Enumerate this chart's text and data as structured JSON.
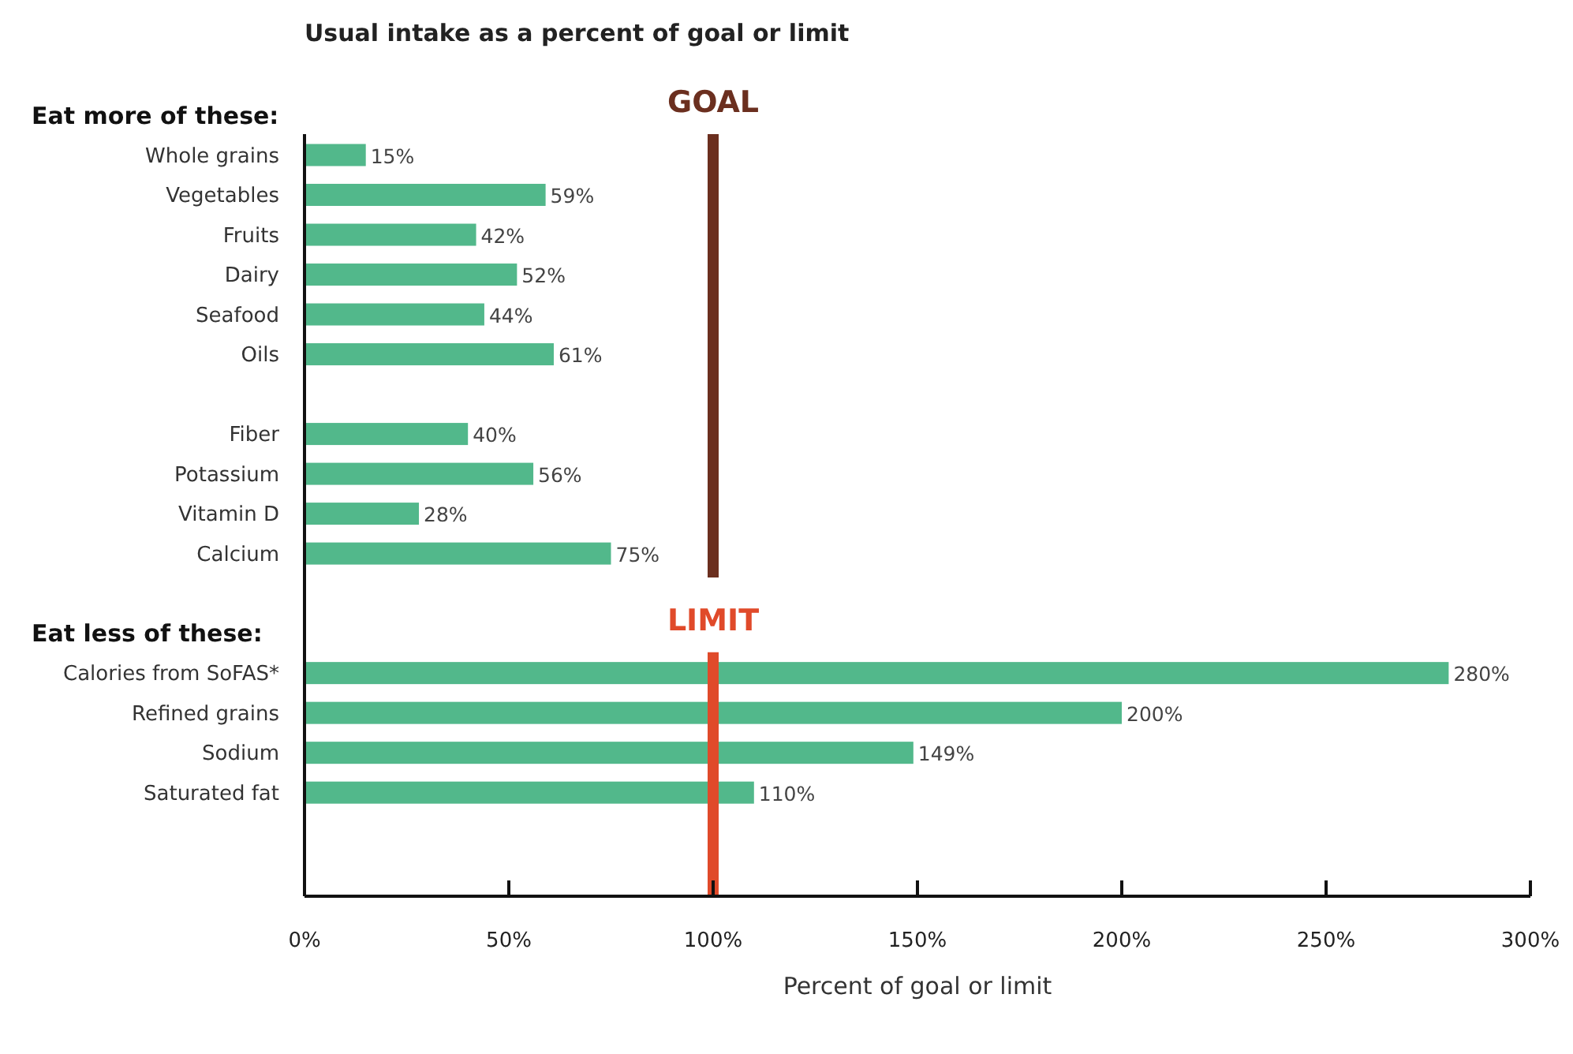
{
  "chart_data": {
    "type": "bar",
    "orientation": "horizontal",
    "title": "Usual intake as a percent of goal or limit",
    "xlabel": "Percent of goal or limit",
    "categories": [
      null,
      "Whole grains",
      "Vegetables",
      "Fruits",
      "Dairy",
      "Seafood",
      "Oils",
      null,
      "Fiber",
      "Potassium",
      "Vitamin D",
      "Calcium",
      null,
      null,
      "Calories from SoFAS*",
      "Refined grains",
      "Sodium",
      "Saturated fat",
      null
    ],
    "values": [
      null,
      15,
      59,
      42,
      52,
      44,
      61,
      null,
      40,
      56,
      28,
      75,
      null,
      null,
      280,
      200,
      149,
      110,
      null
    ],
    "value_labels": [
      null,
      "15%",
      "59%",
      "42%",
      "52%",
      "44%",
      "61%",
      null,
      "40%",
      "56%",
      "28%",
      "75%",
      null,
      null,
      "280%",
      "200%",
      "149%",
      "110%",
      null
    ],
    "color": "#52b88b",
    "xlim": [
      0,
      300
    ],
    "xticks": [
      {
        "value": 0,
        "label": "0%"
      },
      {
        "value": 50,
        "label": "50%"
      },
      {
        "value": 100,
        "label": "100%"
      },
      {
        "value": 150,
        "label": "150%"
      },
      {
        "value": 200,
        "label": "200%"
      },
      {
        "value": 250,
        "label": "250%"
      },
      {
        "value": 300,
        "label": "300%"
      }
    ],
    "annotations": [
      "Eat more of these:",
      "Eat less of these:"
    ],
    "ref_lines": [
      {
        "axis": "x",
        "value": 100,
        "label": "GOAL",
        "color": "#6b2f1f"
      },
      {
        "axis": "x",
        "value": 100,
        "label": "LIMIT",
        "color": "#e04a2a"
      }
    ],
    "grid": false
  }
}
